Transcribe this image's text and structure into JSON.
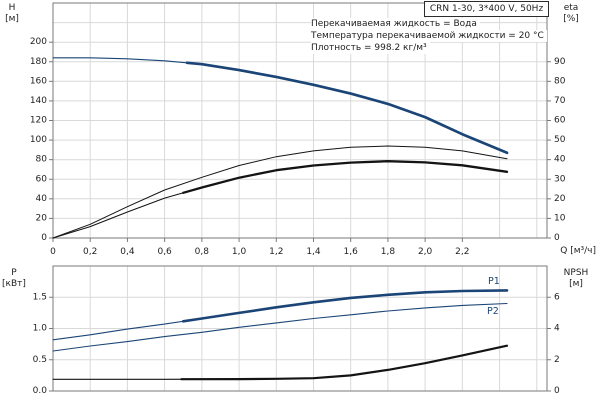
{
  "header": {
    "title_box": "CRN 1-30, 3*400 V, 50Hz"
  },
  "info_lines": [
    "Перекачиваемая жидкость = Вода",
    "Температура перекачиваемой жидкости = 20 °C",
    "Плотность = 998.2 кг/м³"
  ],
  "colors": {
    "curve_blue": "#1b4577",
    "curve_black": "#141414",
    "grid": "#d9d9d9",
    "frame": "#7a7a7a",
    "tick_text": "#1f1f1f"
  },
  "curve_labels": {
    "p1": "P1",
    "p2": "P2"
  },
  "chart_data": [
    {
      "type": "line",
      "title": "CRN 1-30, 3*400 V, 50Hz",
      "x": {
        "label": "Q [м³/ч]",
        "min": 0,
        "max": 2.655,
        "grid_step": 0.2,
        "tick_values": [
          0,
          0.2,
          0.4,
          0.6,
          0.8,
          1.0,
          1.2,
          1.4,
          1.6,
          1.8,
          2.0,
          2.2
        ],
        "tick_labels": [
          "0",
          "0,2",
          "0,4",
          "0,6",
          "0,8",
          "1,0",
          "1,2",
          "1,4",
          "1,6",
          "1,8",
          "2,0",
          "2,2"
        ]
      },
      "y_left": {
        "label": "H [м]",
        "label_lines": [
          "H",
          "[м]"
        ],
        "min": 0,
        "max": 240,
        "grid_step": 20,
        "tick_values": [
          0,
          20,
          40,
          60,
          80,
          100,
          120,
          140,
          160,
          180,
          200
        ],
        "tick_labels": [
          "0",
          "20",
          "40",
          "60",
          "80",
          "100",
          "120",
          "140",
          "160",
          "180",
          "200"
        ]
      },
      "y_right": {
        "label": "eta [%]",
        "label_lines": [
          "eta",
          "[%]"
        ],
        "min": 0,
        "max": 120,
        "grid_step": 10,
        "tick_values": [
          0,
          10,
          20,
          30,
          40,
          50,
          60,
          70,
          80,
          90
        ],
        "tick_labels": [
          "0",
          "10",
          "20",
          "30",
          "40",
          "50",
          "60",
          "70",
          "80",
          "90"
        ]
      },
      "series": [
        {
          "id": "head-curve",
          "axis": "y_left",
          "color_key": "curve_blue",
          "width": 1.2,
          "thick_width": 2.7,
          "thick_from": 0.72,
          "points": [
            [
              0,
              184
            ],
            [
              0.2,
              184
            ],
            [
              0.4,
              183
            ],
            [
              0.6,
              181
            ],
            [
              0.8,
              177.5
            ],
            [
              1.0,
              171.5
            ],
            [
              1.2,
              164.5
            ],
            [
              1.4,
              156.5
            ],
            [
              1.6,
              147.5
            ],
            [
              1.8,
              137
            ],
            [
              2.0,
              123.5
            ],
            [
              2.2,
              106
            ],
            [
              2.44,
              87
            ]
          ]
        },
        {
          "id": "eta-pump-motor-curve",
          "axis": "y_right",
          "color_key": "curve_black",
          "width": 1,
          "points": [
            [
              0,
              0
            ],
            [
              0.2,
              7
            ],
            [
              0.4,
              16
            ],
            [
              0.6,
              24.5
            ],
            [
              0.8,
              31
            ],
            [
              1.0,
              37
            ],
            [
              1.2,
              41.5
            ],
            [
              1.4,
              44.5
            ],
            [
              1.6,
              46.3
            ],
            [
              1.8,
              47
            ],
            [
              2.0,
              46.3
            ],
            [
              2.2,
              44.5
            ],
            [
              2.44,
              40.5
            ]
          ]
        },
        {
          "id": "eta-pump-curve",
          "axis": "y_right",
          "color_key": "curve_black",
          "width": 1,
          "thick_width": 2.3,
          "thick_from": 0.7,
          "points": [
            [
              0,
              0
            ],
            [
              0.2,
              5.8
            ],
            [
              0.4,
              13.3
            ],
            [
              0.6,
              20.4
            ],
            [
              0.8,
              25.8
            ],
            [
              1.0,
              30.8
            ],
            [
              1.2,
              34.6
            ],
            [
              1.4,
              37
            ],
            [
              1.6,
              38.5
            ],
            [
              1.8,
              39.2
            ],
            [
              2.0,
              38.6
            ],
            [
              2.2,
              37.1
            ],
            [
              2.44,
              33.8
            ]
          ]
        }
      ]
    },
    {
      "type": "line",
      "title": "",
      "x": {
        "label": "",
        "min": 0,
        "max": 2.655,
        "grid_step": 0.2,
        "tick_values": [],
        "tick_labels": []
      },
      "y_left": {
        "label": "P [кВт]",
        "label_lines": [
          "P",
          "[кВт]"
        ],
        "min": 0,
        "max": 2.0,
        "grid_step": 0.5,
        "tick_values": [
          0,
          0.5,
          1.0,
          1.5
        ],
        "tick_labels": [
          "0.0",
          "0.5",
          "1.0",
          "1.5"
        ]
      },
      "y_right": {
        "label": "NPSH [м]",
        "label_lines": [
          "NPSH",
          "[м]"
        ],
        "min": 0,
        "max": 8,
        "grid_step": 2,
        "tick_values": [
          0,
          2,
          4,
          6
        ],
        "tick_labels": [
          "0",
          "2",
          "4",
          "6"
        ]
      },
      "series": [
        {
          "id": "p1-curve",
          "label": "P1",
          "axis": "y_left",
          "color_key": "curve_blue",
          "width": 1.1,
          "thick_width": 2.6,
          "thick_from": 0.7,
          "points": [
            [
              0,
              0.82
            ],
            [
              0.2,
              0.9
            ],
            [
              0.4,
              0.99
            ],
            [
              0.6,
              1.07
            ],
            [
              0.8,
              1.16
            ],
            [
              1.0,
              1.25
            ],
            [
              1.2,
              1.34
            ],
            [
              1.4,
              1.42
            ],
            [
              1.6,
              1.49
            ],
            [
              1.8,
              1.54
            ],
            [
              2.0,
              1.58
            ],
            [
              2.2,
              1.6
            ],
            [
              2.44,
              1.61
            ]
          ]
        },
        {
          "id": "p2-curve",
          "label": "P2",
          "axis": "y_left",
          "color_key": "curve_blue",
          "width": 1.1,
          "points": [
            [
              0,
              0.64
            ],
            [
              0.2,
              0.72
            ],
            [
              0.4,
              0.79
            ],
            [
              0.6,
              0.87
            ],
            [
              0.8,
              0.94
            ],
            [
              1.0,
              1.02
            ],
            [
              1.2,
              1.09
            ],
            [
              1.4,
              1.16
            ],
            [
              1.6,
              1.22
            ],
            [
              1.8,
              1.28
            ],
            [
              2.0,
              1.33
            ],
            [
              2.2,
              1.37
            ],
            [
              2.44,
              1.4
            ]
          ]
        },
        {
          "id": "npsh-curve",
          "axis": "y_right",
          "color_key": "curve_black",
          "width": 1.1,
          "thick_width": 2.2,
          "thick_from": 0.69,
          "points": [
            [
              0,
              0.75
            ],
            [
              0.6,
              0.75
            ],
            [
              1.0,
              0.76
            ],
            [
              1.2,
              0.78
            ],
            [
              1.4,
              0.82
            ],
            [
              1.6,
              1.0
            ],
            [
              1.8,
              1.35
            ],
            [
              2.0,
              1.78
            ],
            [
              2.2,
              2.28
            ],
            [
              2.44,
              2.9
            ]
          ]
        }
      ]
    }
  ]
}
